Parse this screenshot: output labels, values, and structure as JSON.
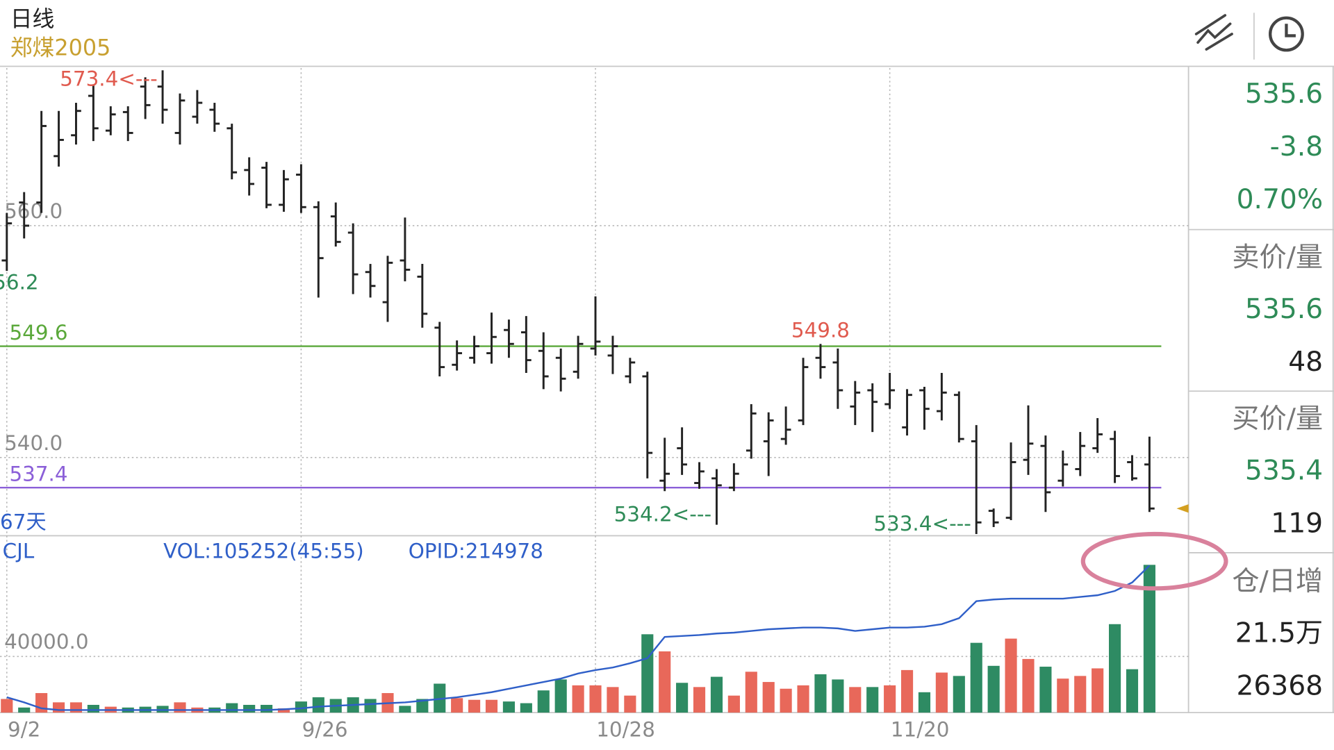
{
  "header": {
    "period": "日线",
    "symbol": "郑煤2005"
  },
  "quote_panel": {
    "last": "535.6",
    "change": "-3.8",
    "change_pct": "0.70%",
    "ask_label": "卖价/量",
    "ask_price": "535.6",
    "ask_volume": "48",
    "bid_label": "买价/量",
    "bid_price": "535.4",
    "bid_volume": "119",
    "oi_label": "仓/日增",
    "open_interest": "21.5万",
    "oi_change": "26368"
  },
  "chart_data": [
    {
      "type": "ohlc",
      "color": "#222222",
      "open": [
        557.0,
        562.0,
        562.0,
        566.0,
        567.8,
        571.2,
        568.2,
        569.8,
        572.0,
        572.0,
        568.0,
        569.4,
        570.0,
        568.4,
        564.8,
        565.0,
        561.8,
        564.4,
        561.6,
        560.8,
        559.4,
        556.0,
        553.4,
        557.0,
        555.6,
        551.2,
        548.0,
        548.6,
        549.0,
        551.0,
        550.8,
        549.2,
        548.6,
        547.4,
        549.4,
        548.8,
        547.0,
        547.0,
        538.0,
        540.8,
        537.8,
        538.2,
        537.4,
        540.6,
        541.4,
        541.6,
        543.2,
        548.6,
        548.2,
        544.4,
        545.8,
        544.6,
        542.6,
        545.8,
        544.0,
        545.4,
        541.4,
        535.4,
        534.8,
        539.8,
        541.0,
        538.0,
        539.0,
        540.8,
        541.6,
        539.6,
        539.4
      ],
      "high": [
        561.1,
        562.9,
        569.9,
        569.9,
        570.6,
        572.1,
        570.3,
        570.3,
        572.8,
        573.4,
        571.4,
        571.7,
        570.6,
        568.8,
        565.9,
        565.5,
        564.8,
        565.3,
        562.1,
        562.0,
        560.2,
        556.7,
        557.4,
        560.7,
        556.7,
        551.7,
        550.1,
        550.5,
        552.5,
        551.9,
        552.2,
        550.8,
        549.4,
        550.5,
        553.9,
        550.5,
        548.6,
        547.4,
        541.7,
        542.6,
        539.6,
        539.0,
        539.5,
        544.6,
        543.9,
        544.4,
        548.6,
        549.8,
        549.4,
        546.6,
        546.4,
        547.3,
        545.9,
        546.1,
        547.3,
        545.7,
        542.8,
        535.6,
        541.3,
        544.5,
        541.9,
        540.6,
        542.2,
        543.4,
        542.3,
        540.2,
        541.8
      ],
      "low": [
        556.1,
        558.9,
        561.1,
        565.1,
        567.0,
        567.3,
        567.8,
        567.3,
        569.2,
        568.8,
        567.0,
        568.8,
        568.1,
        564.0,
        562.6,
        561.5,
        561.2,
        561.1,
        553.8,
        558.2,
        554.1,
        553.8,
        551.7,
        555.2,
        551.2,
        547.0,
        547.5,
        548.1,
        548.1,
        548.6,
        547.3,
        545.9,
        545.7,
        546.8,
        548.8,
        547.2,
        546.4,
        538.2,
        537.1,
        538.5,
        537.3,
        534.2,
        537.1,
        539.9,
        538.4,
        541.1,
        542.8,
        546.8,
        544.2,
        542.8,
        542.2,
        544.2,
        541.9,
        542.4,
        543.2,
        541.3,
        533.4,
        534.0,
        534.6,
        538.5,
        535.3,
        537.5,
        538.4,
        540.4,
        537.8,
        538.0,
        535.3
      ],
      "close": [
        560.2,
        560.0,
        568.6,
        567.4,
        569.9,
        568.4,
        569.6,
        568.0,
        570.4,
        570.0,
        570.8,
        570.6,
        568.8,
        564.6,
        563.6,
        561.8,
        564.0,
        561.6,
        557.2,
        558.6,
        555.8,
        554.8,
        556.8,
        556.2,
        552.4,
        547.8,
        549.0,
        549.6,
        550.4,
        549.8,
        548.4,
        547.0,
        546.8,
        549.8,
        550.0,
        549.6,
        548.2,
        540.4,
        538.6,
        539.4,
        538.8,
        537.6,
        538.6,
        543.8,
        543.2,
        542.4,
        547.8,
        547.8,
        545.8,
        545.6,
        544.8,
        545.8,
        545.4,
        544.2,
        545.6,
        541.6,
        534.4,
        534.4,
        539.6,
        541.2,
        537.0,
        539.4,
        541.0,
        542.0,
        538.4,
        538.2,
        535.6
      ],
      "ylim": [
        533.4,
        573.6
      ],
      "yticks": [
        {
          "value": 560,
          "label": "560.0"
        },
        {
          "value": 540,
          "label": "540.0"
        }
      ],
      "grid": true,
      "hlines": [
        {
          "value": 549.6,
          "color": "#5aa83a"
        },
        {
          "value": 537.4,
          "color": "#8b5fd8"
        }
      ],
      "annotations": [
        {
          "label": "573.4<---",
          "value": 573.4,
          "color": "#e05a4e"
        },
        {
          "value": 549.8,
          "color": "#e05a4e"
        },
        {
          "label": "534.2<---",
          "value": 534.2,
          "color": "#2e8b57"
        },
        {
          "label": "533.4<---",
          "value": 533.4,
          "color": "#2e8b57"
        }
      ],
      "edge_labels": [
        {
          "text": "56.2",
          "color": "#2e8b57"
        },
        {
          "text": "67天",
          "color": "#2f5fc8"
        }
      ],
      "last_marker_color": "#d4a020"
    },
    {
      "type": "bar",
      "title": "CJL",
      "indicators": [
        "VOL:105252(45:55)",
        "OPID:214978"
      ],
      "categories": [
        "9/2",
        null,
        null,
        null,
        null,
        null,
        null,
        null,
        null,
        null,
        null,
        null,
        null,
        null,
        null,
        null,
        null,
        "9/26",
        null,
        null,
        null,
        null,
        null,
        null,
        null,
        null,
        null,
        null,
        null,
        null,
        null,
        null,
        null,
        null,
        "10/28",
        null,
        null,
        null,
        null,
        null,
        null,
        null,
        null,
        null,
        null,
        null,
        null,
        null,
        null,
        null,
        null,
        "11/20",
        null,
        null,
        null,
        null,
        null,
        null,
        null,
        null,
        null,
        null,
        null,
        null,
        null,
        null,
        null
      ],
      "values": [
        9700,
        3600,
        13900,
        7300,
        7300,
        5500,
        4200,
        3600,
        4200,
        4800,
        7300,
        3600,
        3600,
        6700,
        5500,
        5500,
        3000,
        7900,
        10900,
        9700,
        10900,
        9700,
        13900,
        4800,
        9700,
        20600,
        10300,
        9100,
        9100,
        7900,
        6700,
        15800,
        23600,
        19400,
        19400,
        18200,
        12100,
        55800,
        43600,
        21200,
        18200,
        25500,
        12100,
        29100,
        21800,
        17000,
        19400,
        27300,
        23600,
        18200,
        18200,
        19400,
        30300,
        14500,
        28500,
        26100,
        49700,
        33300,
        52700,
        38200,
        32700,
        24200,
        26100,
        31500,
        63000,
        30900,
        105252
      ],
      "up_color": "#e8685a",
      "down_color": "#2e8b63",
      "ylim": [
        0,
        126000
      ],
      "yticks": [
        {
          "value": 40000,
          "label": "40000.0"
        }
      ],
      "grid": true,
      "y2lim": [
        0,
        258500
      ],
      "line": {
        "axis": "y2",
        "color": "#2f5fc8",
        "values": [
          22400,
          14900,
          6200,
          3700,
          3700,
          3700,
          3700,
          3700,
          3700,
          3700,
          3700,
          3700,
          3700,
          3700,
          3700,
          3700,
          4900,
          6200,
          8700,
          9900,
          11200,
          12400,
          13700,
          14900,
          17400,
          19900,
          22400,
          26100,
          29800,
          34800,
          39800,
          44700,
          49700,
          57200,
          62100,
          65900,
          72100,
          79500,
          110600,
          112000,
          113300,
          115600,
          116800,
          119300,
          121800,
          123000,
          124300,
          124300,
          123000,
          119300,
          121800,
          124300,
          124300,
          125500,
          129200,
          137900,
          162800,
          165300,
          166500,
          166500,
          166500,
          166500,
          169000,
          171500,
          177700,
          190100,
          214978
        ]
      }
    }
  ]
}
